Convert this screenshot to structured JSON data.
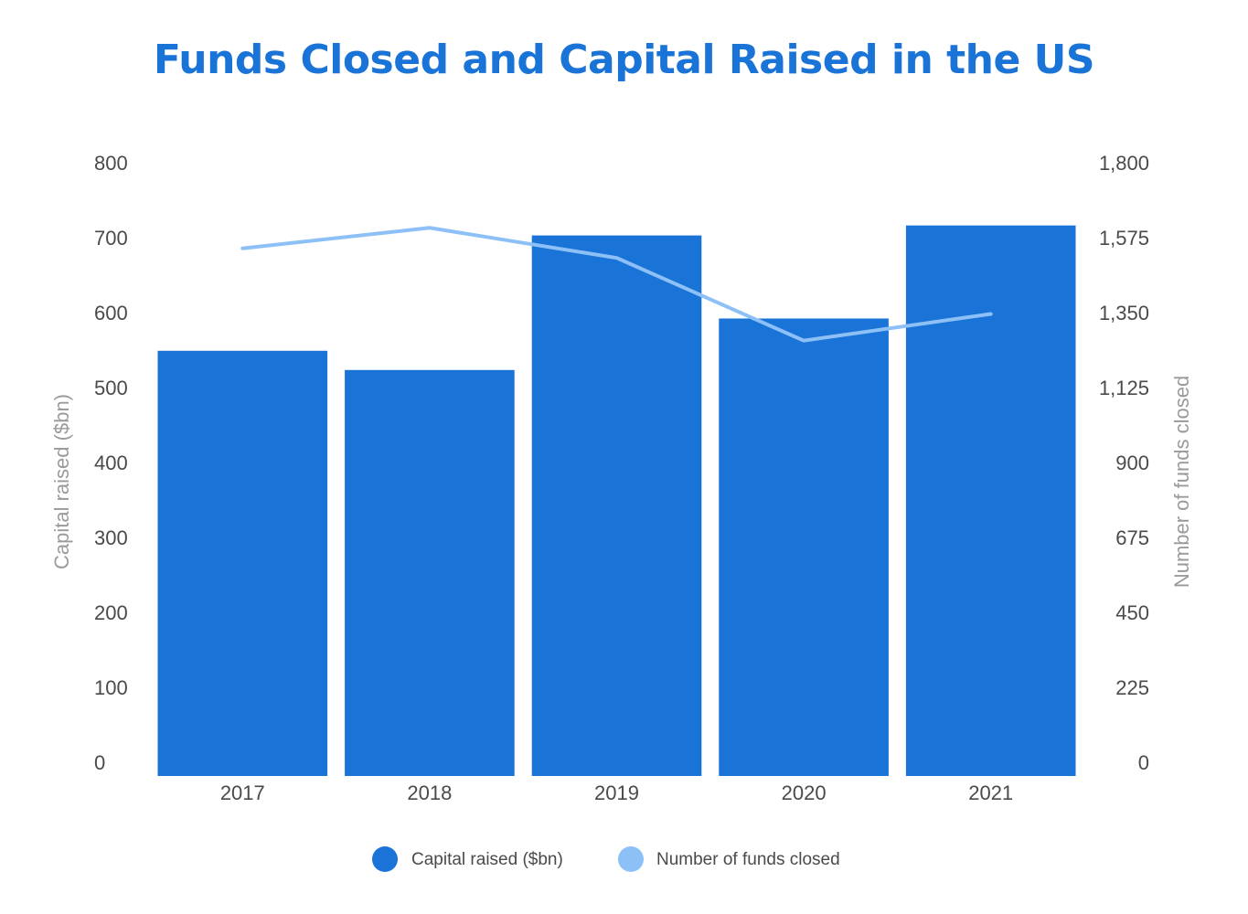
{
  "chart_data": {
    "type": "bar",
    "title": "Funds Closed and Capital Raised in the US",
    "categories": [
      "2017",
      "2018",
      "2019",
      "2020",
      "2021"
    ],
    "series": [
      {
        "name": "Capital raised ($bn)",
        "type": "bar",
        "axis": "left",
        "values": [
          553,
          528,
          703,
          595,
          716
        ]
      },
      {
        "name": "Number of funds closed",
        "type": "line",
        "axis": "right",
        "values": [
          1544,
          1604,
          1516,
          1274,
          1352
        ]
      }
    ],
    "ylabel": "Capital raised ($bn)",
    "y2label": "Number of funds closed",
    "ylim": [
      0,
      800
    ],
    "y2lim": [
      0,
      1800
    ],
    "yticks": [
      "0",
      "100",
      "200",
      "300",
      "400",
      "500",
      "600",
      "700",
      "800"
    ],
    "y2ticks": [
      "0",
      "225",
      "450",
      "675",
      "900",
      "1,125",
      "1,350",
      "1,575",
      "1,800"
    ],
    "grid": false,
    "legend_position": "bottom-center",
    "colors": {
      "bar": "#1a73d6",
      "line": "#8cc0f7",
      "title": "#1a73d6"
    }
  }
}
